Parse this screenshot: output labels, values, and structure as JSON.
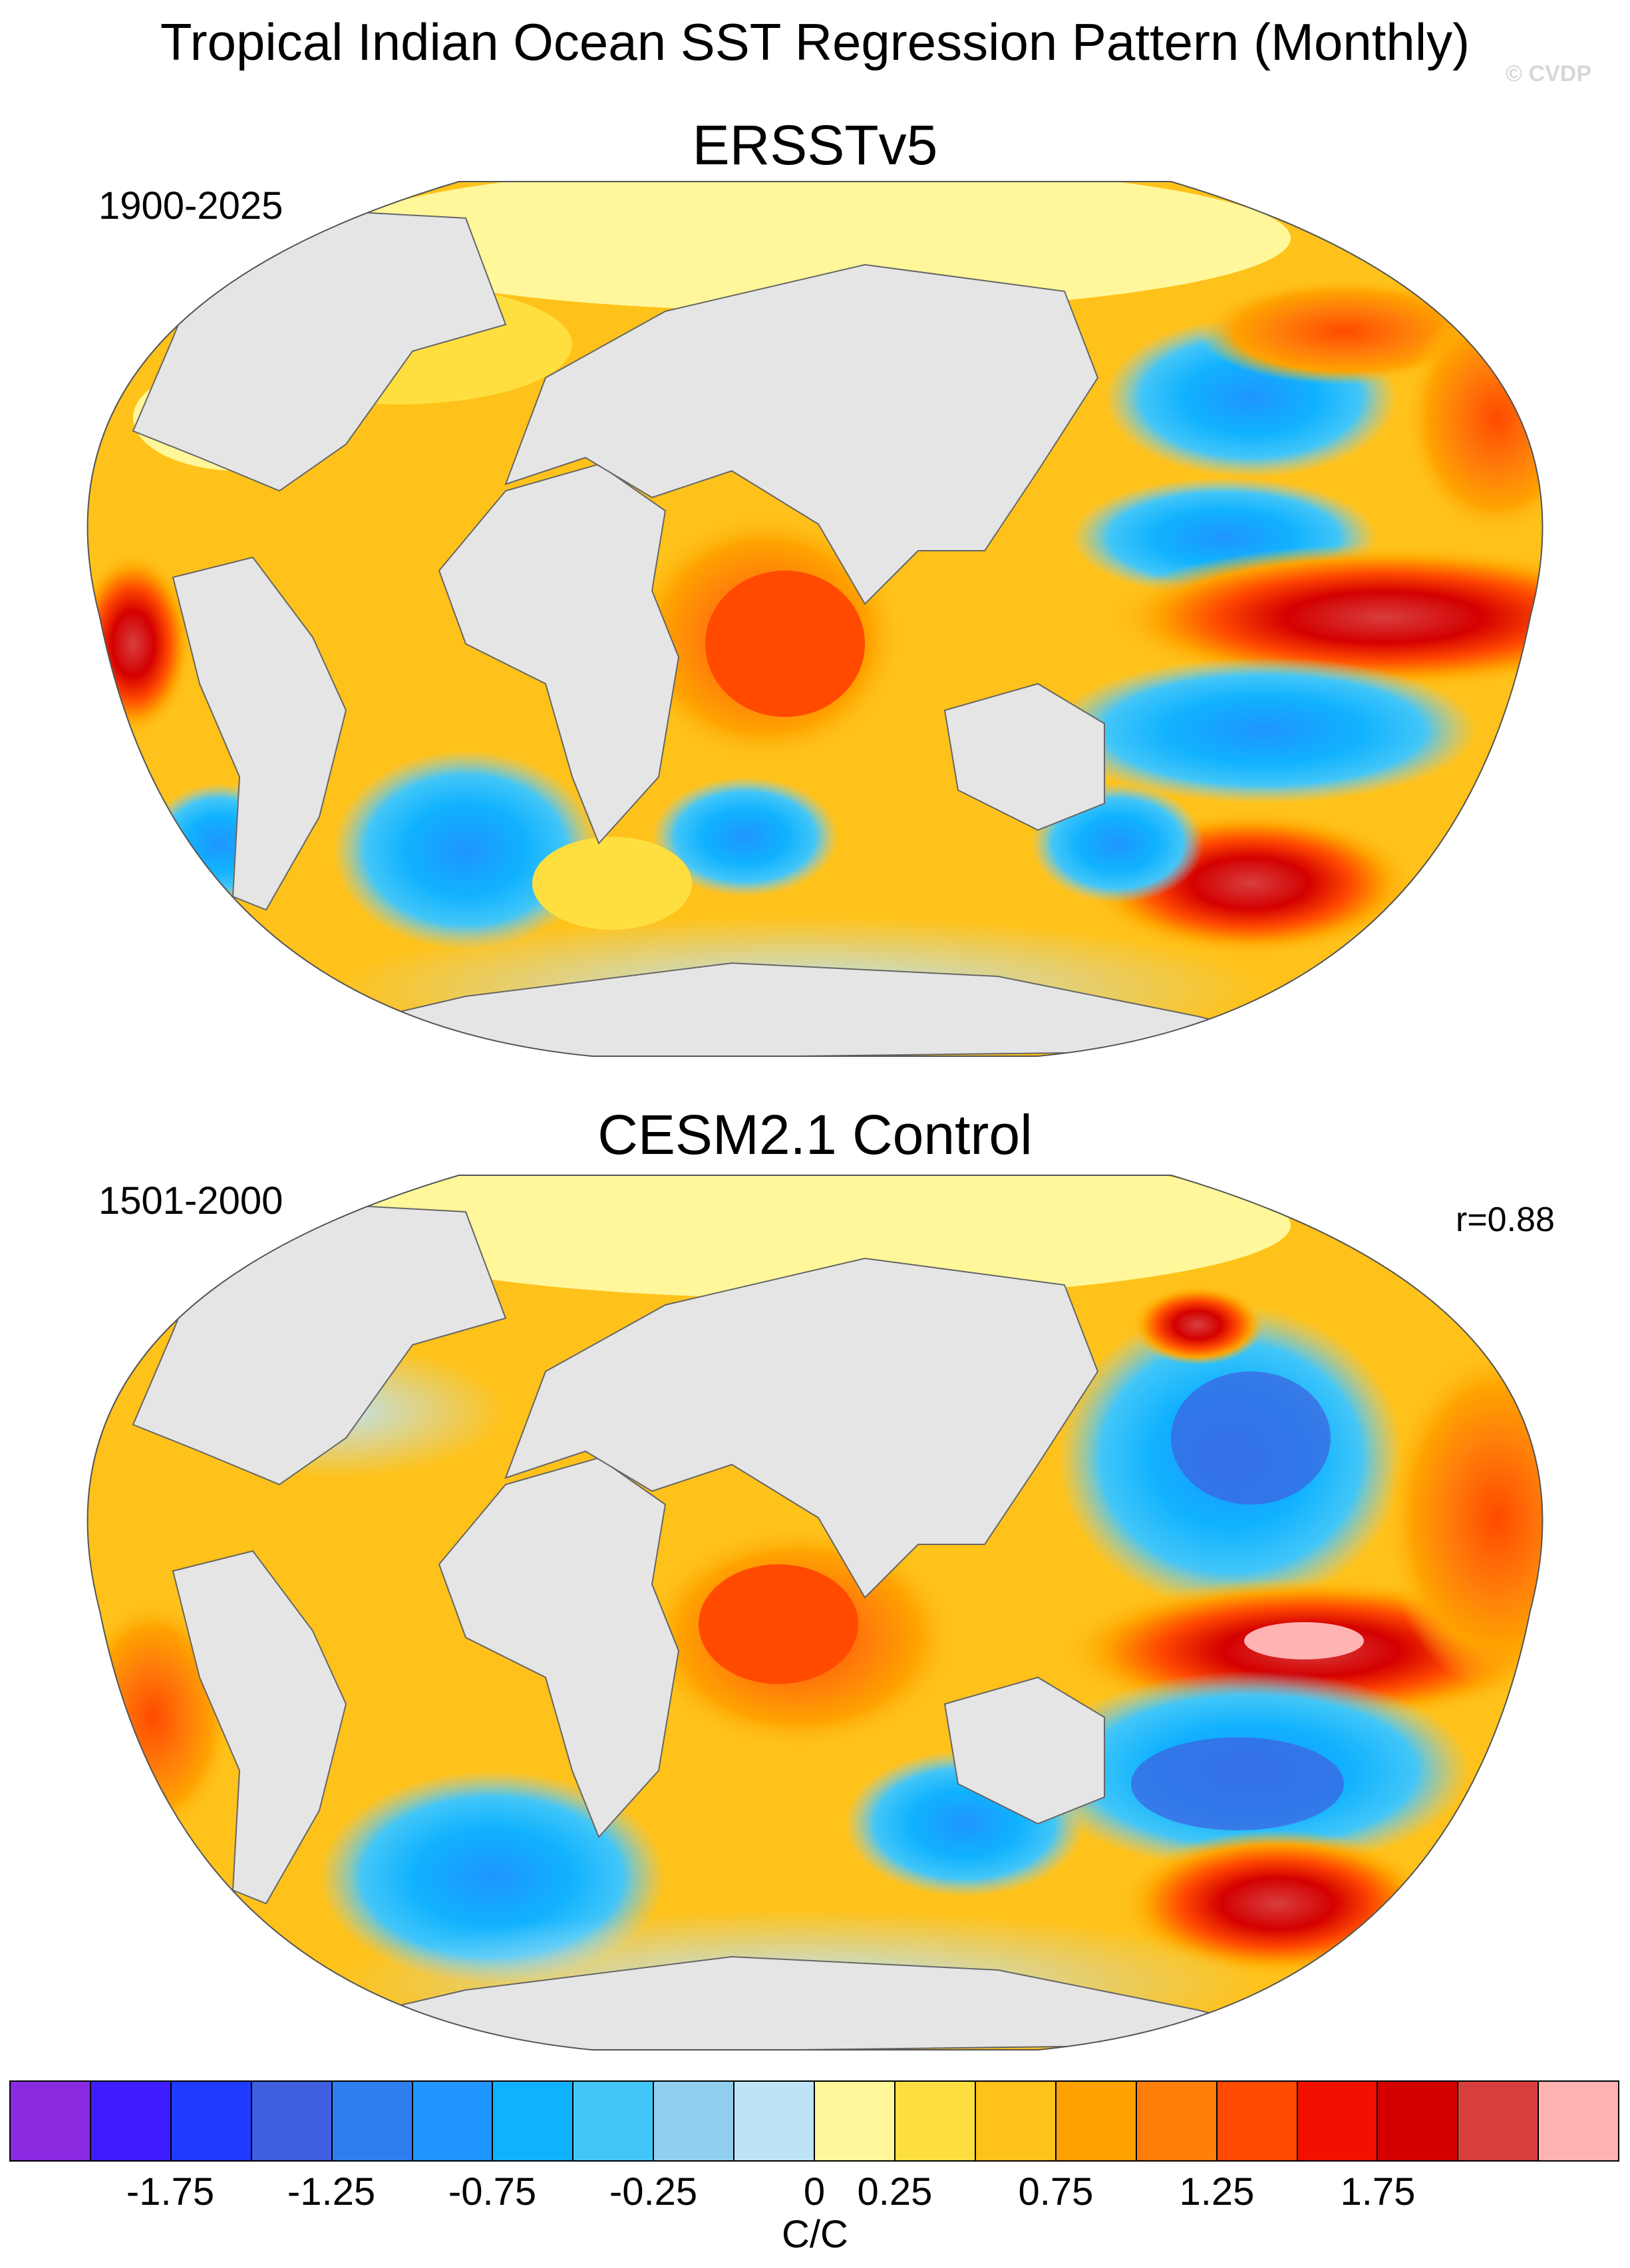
{
  "title": "Tropical Indian Ocean SST Regression Pattern (Monthly)",
  "credit": "© CVDP",
  "panels": [
    {
      "name": "ERSSTv5",
      "period": "1900-2025",
      "r": ""
    },
    {
      "name": "CESM2.1 Control",
      "period": "1501-2000",
      "r": "r=0.88"
    }
  ],
  "colorbar": {
    "colors": [
      "#8a2be2",
      "#3f1dff",
      "#1f3bff",
      "#3f5fe0",
      "#2f7ef0",
      "#1f95ff",
      "#10b2ff",
      "#42c6f8",
      "#92cfee",
      "#bde3f5",
      "#fff79a",
      "#ffdf40",
      "#ffc21a",
      "#ffa200",
      "#ff7f0a",
      "#ff4a00",
      "#f21000",
      "#d40000",
      "#d83e3e",
      "#ffb3b3"
    ],
    "tick_labels": [
      "-1.75",
      "-1.25",
      "-0.75",
      "-0.25",
      "0",
      "0.25",
      "0.75",
      "1.25",
      "1.75"
    ],
    "units": "C/C"
  }
}
